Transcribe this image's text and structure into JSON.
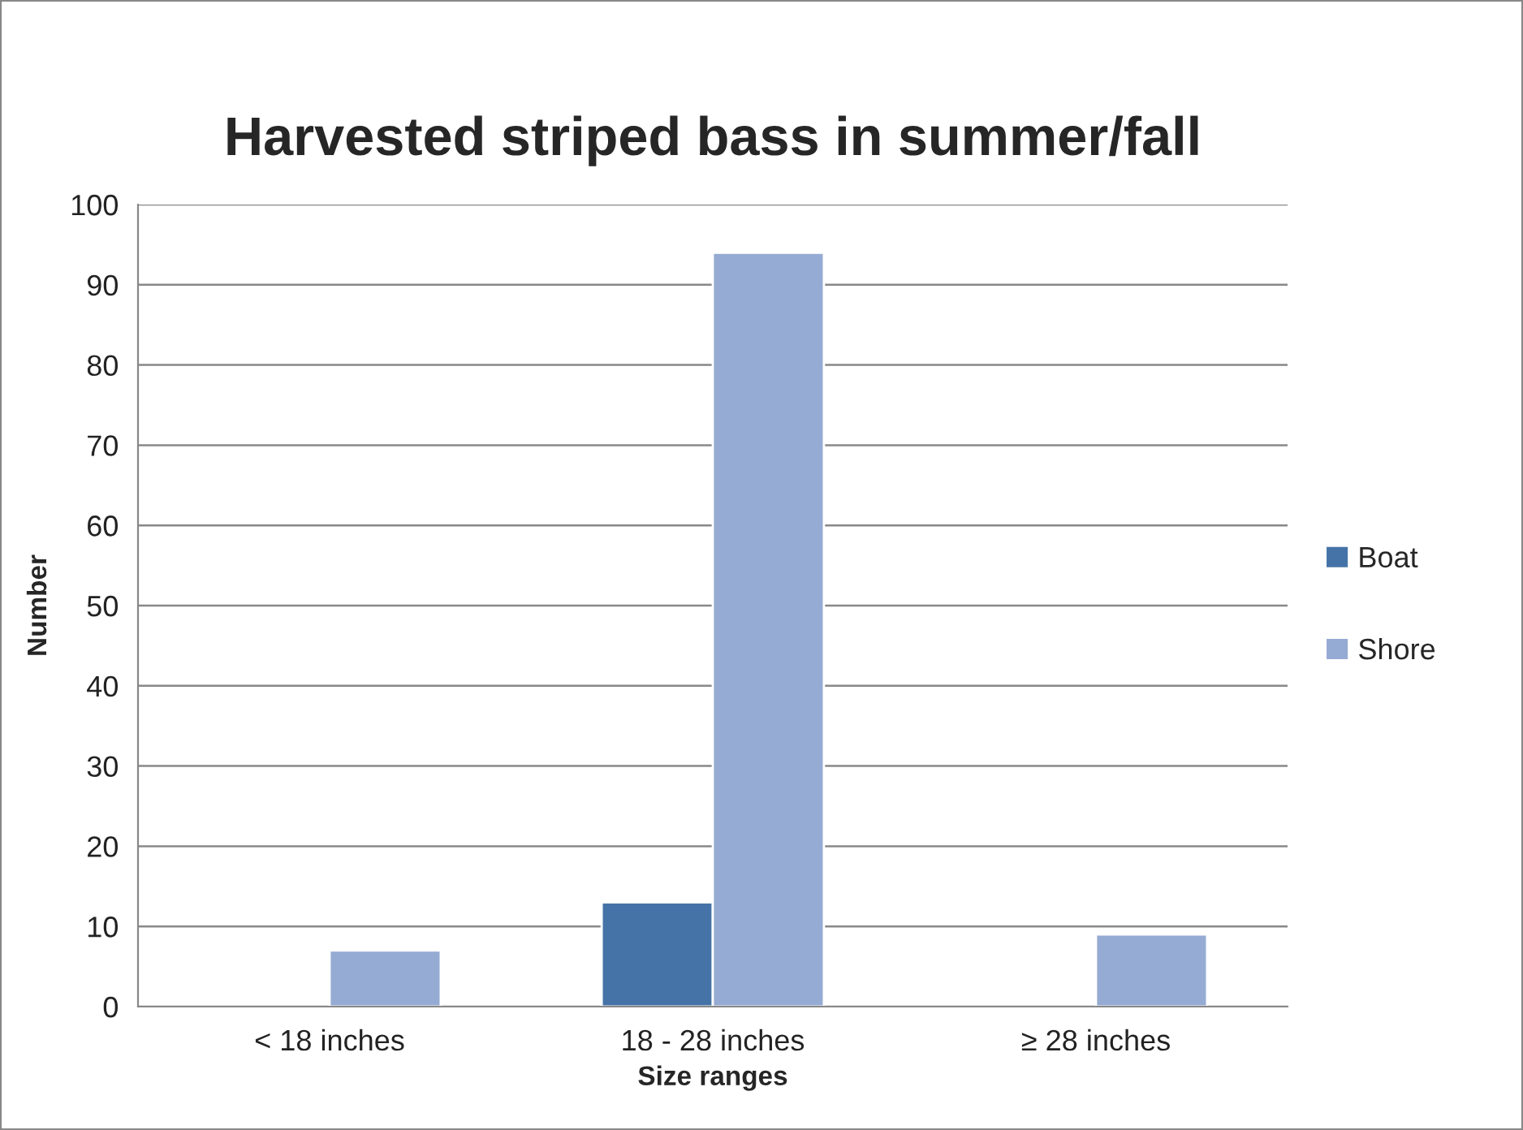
{
  "chart_data": {
    "type": "bar",
    "title": "Harvested striped bass in summer/fall",
    "xlabel": "Size ranges",
    "ylabel": "Number",
    "categories": [
      "< 18 inches",
      "18 - 28 inches",
      "≥ 28 inches"
    ],
    "series": [
      {
        "name": "Boat",
        "color": "#4673a7",
        "values": [
          null,
          13,
          null
        ]
      },
      {
        "name": "Shore",
        "color": "#95abd3",
        "values": [
          7,
          94,
          9
        ]
      }
    ],
    "ylim": [
      0,
      100
    ],
    "yticks": [
      0,
      10,
      20,
      30,
      40,
      50,
      60,
      70,
      80,
      90,
      100
    ],
    "grid": "y",
    "legend": "right"
  }
}
